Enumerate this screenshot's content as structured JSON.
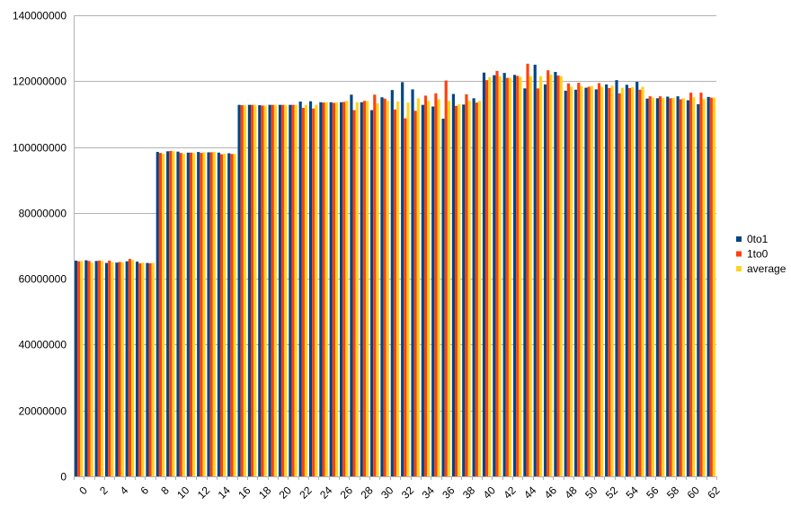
{
  "chart_data": {
    "type": "bar",
    "title": "",
    "xlabel": "",
    "ylabel": "",
    "ylim": [
      0,
      140000000
    ],
    "yticks": [
      "0",
      "20000000",
      "40000000",
      "60000000",
      "80000000",
      "100000000",
      "120000000",
      "140000000"
    ],
    "grid": true,
    "legend_position": "right",
    "categories": [
      0,
      1,
      2,
      3,
      4,
      5,
      6,
      7,
      8,
      9,
      10,
      11,
      12,
      13,
      14,
      15,
      16,
      17,
      18,
      19,
      20,
      21,
      22,
      23,
      24,
      25,
      26,
      27,
      28,
      29,
      30,
      31,
      32,
      33,
      34,
      35,
      36,
      37,
      38,
      39,
      40,
      41,
      42,
      43,
      44,
      45,
      46,
      47,
      48,
      49,
      50,
      51,
      52,
      53,
      54,
      55,
      56,
      57,
      58,
      59,
      60,
      61,
      62
    ],
    "x_tick_labels": [
      "0",
      "2",
      "4",
      "6",
      "8",
      "10",
      "12",
      "14",
      "16",
      "18",
      "20",
      "22",
      "24",
      "26",
      "28",
      "30",
      "32",
      "34",
      "36",
      "38",
      "40",
      "42",
      "44",
      "46",
      "48",
      "50",
      "52",
      "54",
      "56",
      "58",
      "60",
      "62"
    ],
    "series": [
      {
        "name": "0to1",
        "color": "#004586",
        "values": [
          65500000,
          65600000,
          65400000,
          64800000,
          64900000,
          65300000,
          65200000,
          64800000,
          98500000,
          98700000,
          98600000,
          98300000,
          98500000,
          98400000,
          98300000,
          98100000,
          112800000,
          112800000,
          112700000,
          112800000,
          112800000,
          112800000,
          113800000,
          113900000,
          113600000,
          113600000,
          113600000,
          115900000,
          113600000,
          111200000,
          115100000,
          117300000,
          119700000,
          117500000,
          112800000,
          112300000,
          108600000,
          116100000,
          112900000,
          114800000,
          122600000,
          121800000,
          122500000,
          121900000,
          117800000,
          125000000,
          119000000,
          122800000,
          117100000,
          117400000,
          118000000,
          117500000,
          119000000,
          120300000,
          118900000,
          119800000,
          114700000,
          114800000,
          115300000,
          115400000,
          114200000,
          113000000,
          115200000
        ]
      },
      {
        "name": "1to0",
        "color": "#ff420e",
        "values": [
          65300000,
          65400000,
          65500000,
          65500000,
          65100000,
          66000000,
          64700000,
          64700000,
          98200000,
          98800000,
          98200000,
          98300000,
          98200000,
          98400000,
          97800000,
          97900000,
          112700000,
          112800000,
          112600000,
          112800000,
          112800000,
          112800000,
          111900000,
          111700000,
          113500000,
          113400000,
          113700000,
          111200000,
          114000000,
          115900000,
          114700000,
          111400000,
          108700000,
          111000000,
          115600000,
          116300000,
          120200000,
          112500000,
          116000000,
          113500000,
          120300000,
          123100000,
          121000000,
          121600000,
          125300000,
          117800000,
          123300000,
          121700000,
          119300000,
          119500000,
          118300000,
          119400000,
          117900000,
          116300000,
          117900000,
          117400000,
          115400000,
          115400000,
          114800000,
          114500000,
          116500000,
          116500000,
          115000000
        ]
      },
      {
        "name": "average",
        "color": "#ffd320",
        "values": [
          65400000,
          64900000,
          65400000,
          65000000,
          65000000,
          65700000,
          64900000,
          64800000,
          98000000,
          98700000,
          98000000,
          98200000,
          98400000,
          98500000,
          98000000,
          97900000,
          112700000,
          112800000,
          112600000,
          112800000,
          112800000,
          112800000,
          112800000,
          112800000,
          113600000,
          113500000,
          114000000,
          113600000,
          114000000,
          113300000,
          114000000,
          113800000,
          113500000,
          114800000,
          114000000,
          114500000,
          114000000,
          113000000,
          114000000,
          114000000,
          121200000,
          121500000,
          121000000,
          121300000,
          121500000,
          121500000,
          122000000,
          121500000,
          118300000,
          118500000,
          118500000,
          118300000,
          118600000,
          118000000,
          118200000,
          118300000,
          115000000,
          114900000,
          114900000,
          114800000,
          115100000,
          114600000,
          115000000
        ]
      }
    ]
  }
}
